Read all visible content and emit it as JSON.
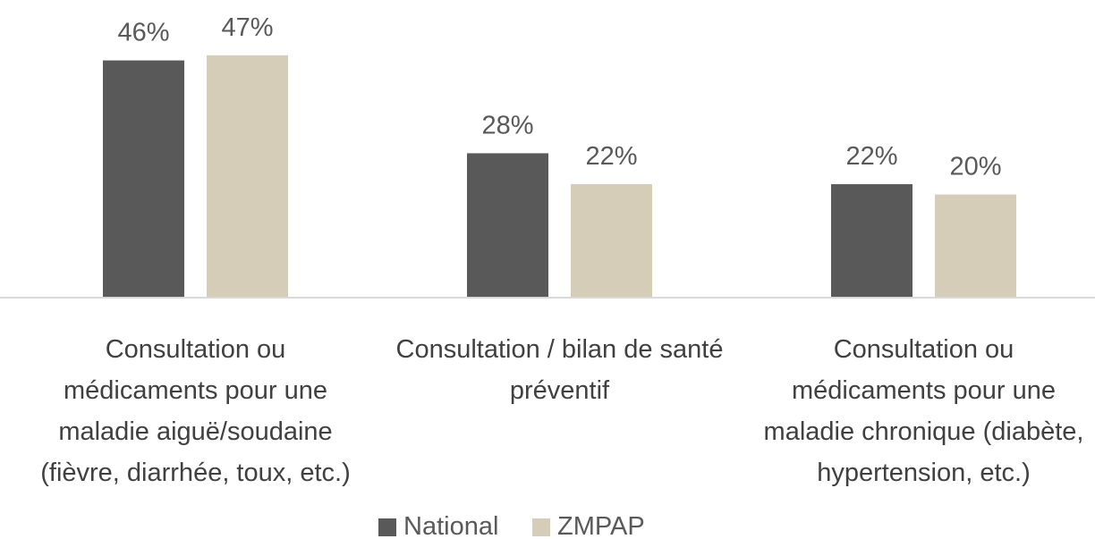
{
  "chart_data": {
    "type": "bar",
    "categories": [
      "Consultation ou médicaments pour une maladie aiguë/soudaine (fièvre, diarrhée, toux, etc.)",
      "Consultation / bilan de santé préventif",
      "Consultation ou médicaments pour une maladie chronique (diabète, hypertension, etc.)"
    ],
    "series": [
      {
        "name": "National",
        "color": "#595959",
        "values": [
          46,
          28,
          22
        ],
        "value_labels": [
          "46%",
          "28%",
          "22%"
        ]
      },
      {
        "name": "ZMPAP",
        "color": "#d6cdb9",
        "values": [
          47,
          22,
          20
        ],
        "value_labels": [
          "47%",
          "22%",
          "20%"
        ]
      }
    ],
    "legend": "bottom"
  }
}
